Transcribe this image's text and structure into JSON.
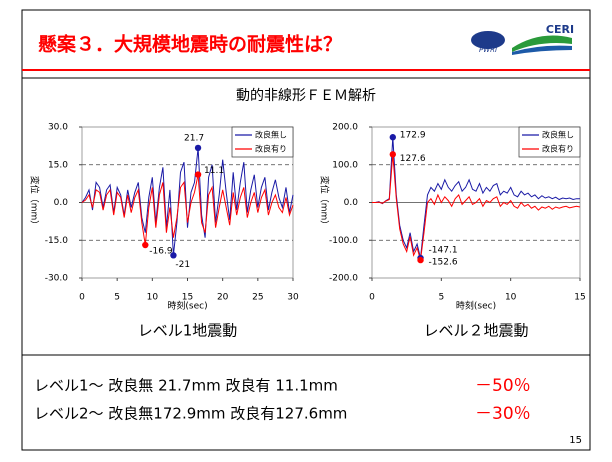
{
  "title": "懸案３．大規模地震時の耐震性は？",
  "logos": [
    "PWRI",
    "CERI"
  ],
  "panel_title": "動的非線形ＦＥＭ解析",
  "summary": [
    {
      "text": "レベル1～ 改良無 21.7mm 改良有 11.1mm",
      "reduction": "－50％"
    },
    {
      "text": "レベル2～ 改良無172.9mm 改良有127.6mm",
      "reduction": "－30％"
    }
  ],
  "page_number": "15",
  "chart_data": [
    {
      "type": "line",
      "caption": "レベル1地震動",
      "xlabel": "時刻(sec)",
      "ylabel": "変位（mm）",
      "x": [
        0,
        0.5,
        1,
        1.5,
        2,
        2.5,
        3,
        3.5,
        4,
        4.5,
        5,
        5.5,
        6,
        6.5,
        7,
        7.5,
        8,
        8.5,
        9,
        9.5,
        10,
        10.5,
        11,
        11.5,
        12,
        12.5,
        13,
        13.5,
        14,
        14.5,
        15,
        15.5,
        16,
        16.5,
        17,
        17.5,
        18,
        18.5,
        19,
        19.5,
        20,
        20.5,
        21,
        21.5,
        22,
        22.5,
        23,
        23.5,
        24,
        24.5,
        25,
        25.5,
        26,
        26.5,
        27,
        27.5,
        28,
        28.5,
        29,
        29.5,
        30
      ],
      "series": [
        {
          "name": "改良無し",
          "color": "#1a1aa6",
          "values": [
            0,
            2,
            5,
            -3,
            8,
            6,
            -2,
            5,
            7,
            -4,
            6,
            3,
            -5,
            5,
            -2,
            4,
            8,
            -6,
            -12,
            2,
            10,
            -8,
            6,
            14,
            -10,
            5,
            -21.0,
            -8,
            12,
            16,
            -10,
            4,
            8,
            21.7,
            -5,
            -14,
            10,
            15,
            -8,
            3,
            17,
            4,
            -7,
            12,
            -3,
            8,
            16,
            -4,
            5,
            11,
            -2,
            6,
            10,
            -3,
            4,
            9,
            2,
            -2,
            6,
            -4,
            3
          ]
        },
        {
          "name": "改良有り",
          "color": "#ff0000",
          "values": [
            0,
            1,
            3,
            -2,
            5,
            4,
            -3,
            3,
            5,
            -5,
            4,
            2,
            -6,
            3,
            -4,
            2,
            5,
            -8,
            -16.9,
            -2,
            6,
            -10,
            3,
            8,
            -12,
            -2,
            -14,
            -6,
            6,
            8,
            -8,
            0,
            4,
            11.1,
            -8,
            -12,
            3,
            6,
            -10,
            -2,
            5,
            -2,
            -9,
            4,
            -5,
            2,
            6,
            -6,
            0,
            4,
            -4,
            2,
            5,
            -5,
            0,
            3,
            -2,
            -4,
            2,
            -5,
            -1
          ]
        }
      ],
      "annotations": [
        {
          "x": 16.5,
          "y": 21.7,
          "series": 0
        },
        {
          "x": 16.5,
          "y": 11.1,
          "series": 1
        },
        {
          "x": 9,
          "y": -16.9,
          "series": 1
        },
        {
          "x": 13,
          "y": -21.0,
          "series": 0
        }
      ],
      "xlim": [
        0,
        30
      ],
      "xticks": [
        0,
        5,
        10,
        15,
        20,
        25,
        30
      ],
      "ylim": [
        -30,
        30
      ],
      "yticks": [
        {
          "value": 30,
          "label": "30.0"
        },
        {
          "value": 15,
          "label": "15.0"
        },
        {
          "value": 0,
          "label": "0.0"
        },
        {
          "value": -15,
          "label": "-15.0"
        },
        {
          "value": -30,
          "label": "-30.0"
        }
      ],
      "grid": true,
      "legend": "upper right"
    },
    {
      "type": "line",
      "caption": "レベル２地震動",
      "xlabel": "時刻(sec)",
      "ylabel": "変位（mm）",
      "x": [
        0,
        0.25,
        0.5,
        0.75,
        1,
        1.25,
        1.5,
        1.75,
        2,
        2.25,
        2.5,
        2.75,
        3,
        3.25,
        3.5,
        3.75,
        4,
        4.25,
        4.5,
        4.75,
        5,
        5.25,
        5.5,
        5.75,
        6,
        6.25,
        6.5,
        6.75,
        7,
        7.25,
        7.5,
        7.75,
        8,
        8.25,
        8.5,
        8.75,
        9,
        9.25,
        9.5,
        9.75,
        10,
        10.25,
        10.5,
        10.75,
        11,
        11.25,
        11.5,
        11.75,
        12,
        12.25,
        12.5,
        12.75,
        13,
        13.25,
        13.5,
        13.75,
        14,
        14.25,
        14.5,
        14.75,
        15
      ],
      "series": [
        {
          "name": "改良無し",
          "color": "#1a1aa6",
          "values": [
            0,
            0,
            2,
            -3,
            5,
            10,
            172.9,
            20,
            -60,
            -100,
            -120,
            -80,
            -130,
            -110,
            -147.1,
            -60,
            20,
            40,
            30,
            50,
            35,
            60,
            40,
            30,
            45,
            55,
            30,
            40,
            60,
            35,
            30,
            50,
            25,
            40,
            30,
            45,
            50,
            20,
            30,
            25,
            40,
            20,
            15,
            30,
            20,
            25,
            15,
            20,
            10,
            18,
            12,
            15,
            10,
            14,
            8,
            12,
            10,
            12,
            8,
            10,
            10
          ]
        },
        {
          "name": "改良有り",
          "color": "#ff0000",
          "values": [
            0,
            0,
            1,
            -2,
            4,
            8,
            127.6,
            10,
            -70,
            -110,
            -130,
            -90,
            -140,
            -120,
            -152.6,
            -80,
            0,
            10,
            -5,
            20,
            0,
            15,
            5,
            -10,
            10,
            20,
            -5,
            5,
            15,
            -5,
            0,
            10,
            -10,
            5,
            0,
            10,
            15,
            -10,
            0,
            -5,
            5,
            -10,
            -15,
            0,
            -10,
            -5,
            -15,
            -10,
            -20,
            -12,
            -15,
            -10,
            -18,
            -12,
            -15,
            -12,
            -10,
            -14,
            -12,
            -10,
            -12
          ]
        }
      ],
      "annotations": [
        {
          "x": 1.5,
          "y": 172.9,
          "series": 0
        },
        {
          "x": 1.5,
          "y": 127.6,
          "series": 1
        },
        {
          "x": 3.5,
          "y": -147.1,
          "series": 0
        },
        {
          "x": 3.5,
          "y": -152.6,
          "series": 1
        }
      ],
      "xlim": [
        0,
        15
      ],
      "xticks": [
        0,
        5,
        10,
        15
      ],
      "ylim": [
        -200,
        200
      ],
      "yticks": [
        {
          "value": 200,
          "label": "200.0"
        },
        {
          "value": 100,
          "label": "100.0"
        },
        {
          "value": 0,
          "label": "0.0"
        },
        {
          "value": -100,
          "label": "-100.0"
        },
        {
          "value": -200,
          "label": "-200.0"
        }
      ],
      "grid": true,
      "legend": "upper right"
    }
  ]
}
